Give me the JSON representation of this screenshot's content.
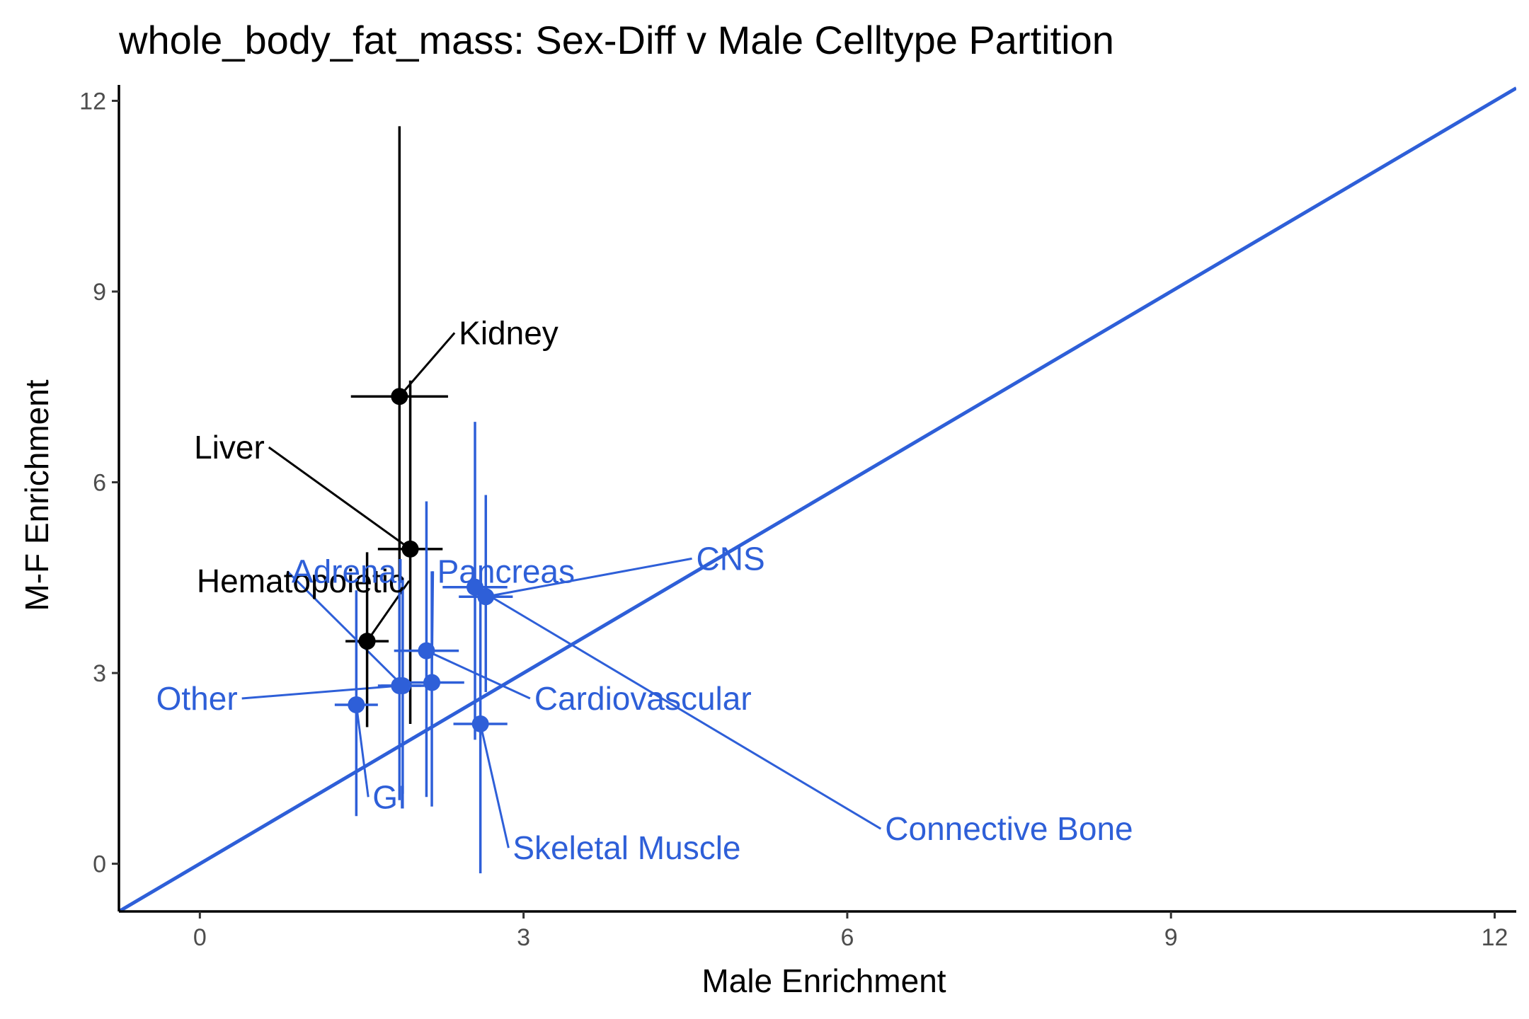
{
  "chart_data": {
    "type": "scatter",
    "title": "whole_body_fat_mass: Sex-Diff v Male Celltype Partition",
    "xlabel": "Male Enrichment",
    "ylabel": "M-F Enrichment",
    "xlim": [
      -0.75,
      12.2
    ],
    "ylim": [
      -0.75,
      12.25
    ],
    "xticks": [
      0,
      3,
      6,
      9,
      12
    ],
    "yticks": [
      0,
      3,
      6,
      9,
      12
    ],
    "xtick_labels": [
      "0",
      "3",
      "6",
      "9",
      "12"
    ],
    "ytick_labels": [
      "0",
      "3",
      "6",
      "9",
      "12"
    ],
    "grid": false,
    "legend": "none",
    "reference_line": {
      "slope": 1,
      "intercept": 0,
      "color": "#2E5FD8"
    },
    "colors": {
      "significant": "#000000",
      "other": "#2E5FD8"
    },
    "points": [
      {
        "label": "Kidney",
        "x": 1.85,
        "y": 7.35,
        "xmin": 1.4,
        "xmax": 2.3,
        "ymin": 3.2,
        "ymax": 11.6,
        "color": "#000000",
        "label_x": 2.4,
        "label_y": 8.35,
        "anchor": "start"
      },
      {
        "label": "Liver",
        "x": 1.95,
        "y": 4.95,
        "xmin": 1.65,
        "xmax": 2.25,
        "ymin": 2.2,
        "ymax": 7.6,
        "color": "#000000",
        "label_x": 0.6,
        "label_y": 6.55,
        "anchor": "end"
      },
      {
        "label": "Hematopoietic",
        "x": 1.55,
        "y": 3.5,
        "xmin": 1.35,
        "xmax": 1.75,
        "ymin": 2.15,
        "ymax": 4.9,
        "color": "#000000",
        "label_x": 1.9,
        "label_y": 4.45,
        "anchor": "end"
      },
      {
        "label": "Adrenal",
        "x": 1.88,
        "y": 2.8,
        "xmin": 1.68,
        "xmax": 2.08,
        "ymin": 1.1,
        "ymax": 4.5,
        "color": "#2E5FD8",
        "label_x": 0.85,
        "label_y": 4.6,
        "anchor": "start"
      },
      {
        "label": "Pancreas",
        "x": 2.15,
        "y": 2.85,
        "xmin": 1.85,
        "xmax": 2.45,
        "ymin": 0.9,
        "ymax": 4.6,
        "color": "#2E5FD8",
        "label_x": 2.2,
        "label_y": 4.6,
        "anchor": "start"
      },
      {
        "label": "CNS",
        "x": 2.65,
        "y": 4.2,
        "xmin": 2.4,
        "xmax": 2.9,
        "ymin": 2.7,
        "ymax": 5.8,
        "color": "#2E5FD8",
        "label_x": 4.6,
        "label_y": 4.8,
        "anchor": "start"
      },
      {
        "label": "Cardiovascular",
        "x": 2.1,
        "y": 3.35,
        "xmin": 1.8,
        "xmax": 2.4,
        "ymin": 1.05,
        "ymax": 5.7,
        "color": "#2E5FD8",
        "label_x": 3.1,
        "label_y": 2.6,
        "anchor": "start"
      },
      {
        "label": "Connective Bone",
        "x": 2.55,
        "y": 4.35,
        "xmin": 2.25,
        "xmax": 2.85,
        "ymin": 1.95,
        "ymax": 6.95,
        "color": "#2E5FD8",
        "label_x": 6.35,
        "label_y": 0.55,
        "anchor": "start"
      },
      {
        "label": "Other",
        "x": 1.85,
        "y": 2.8,
        "xmin": 1.65,
        "xmax": 2.05,
        "ymin": 1.0,
        "ymax": 4.45,
        "color": "#2E5FD8",
        "label_x": 0.35,
        "label_y": 2.6,
        "anchor": "end"
      },
      {
        "label": "GI",
        "x": 1.45,
        "y": 2.5,
        "xmin": 1.25,
        "xmax": 1.65,
        "ymin": 0.75,
        "ymax": 4.3,
        "color": "#2E5FD8",
        "label_x": 1.6,
        "label_y": 1.05,
        "anchor": "start"
      },
      {
        "label": "Skeletal Muscle",
        "x": 2.6,
        "y": 2.2,
        "xmin": 2.35,
        "xmax": 2.85,
        "ymin": -0.15,
        "ymax": 4.35,
        "color": "#2E5FD8",
        "label_x": 2.9,
        "label_y": 0.25,
        "anchor": "start"
      }
    ]
  }
}
